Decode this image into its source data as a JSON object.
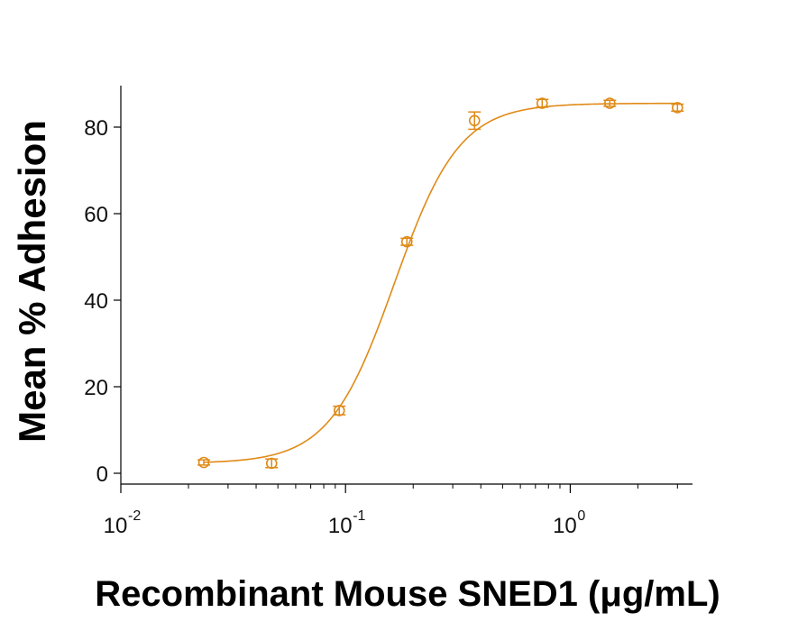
{
  "chart_data": {
    "type": "scatter",
    "title": "",
    "xlabel": "Recombinant Mouse SNED1 (μg/mL)",
    "ylabel": "Mean % Adhesion",
    "xscale": "log",
    "xlim": [
      0.01,
      3.5
    ],
    "ylim": [
      0,
      90
    ],
    "yticks": [
      0,
      20,
      40,
      60,
      80
    ],
    "xticks": [
      {
        "value": 0.01,
        "base": "10",
        "exp": "-2"
      },
      {
        "value": 0.1,
        "base": "10",
        "exp": "-1"
      },
      {
        "value": 1,
        "base": "10",
        "exp": "0"
      }
    ],
    "grid": false,
    "color": "#e08a17",
    "series": [
      {
        "points": [
          {
            "x": 0.0234,
            "y": 2.5,
            "err": 0.6
          },
          {
            "x": 0.0469,
            "y": 2.3,
            "err": 1.0
          },
          {
            "x": 0.0938,
            "y": 14.5,
            "err": 1.0
          },
          {
            "x": 0.1875,
            "y": 53.5,
            "err": 0.8
          },
          {
            "x": 0.375,
            "y": 81.5,
            "err": 2.0
          },
          {
            "x": 0.75,
            "y": 85.5,
            "err": 0.9
          },
          {
            "x": 1.5,
            "y": 85.5,
            "err": 0.7
          },
          {
            "x": 3.0,
            "y": 84.5,
            "err": 0.8
          }
        ],
        "fit": {
          "model": "4PL",
          "bottom": 2.3,
          "top": 85.5,
          "ec50": 0.165,
          "hill": 3.0
        }
      }
    ]
  }
}
